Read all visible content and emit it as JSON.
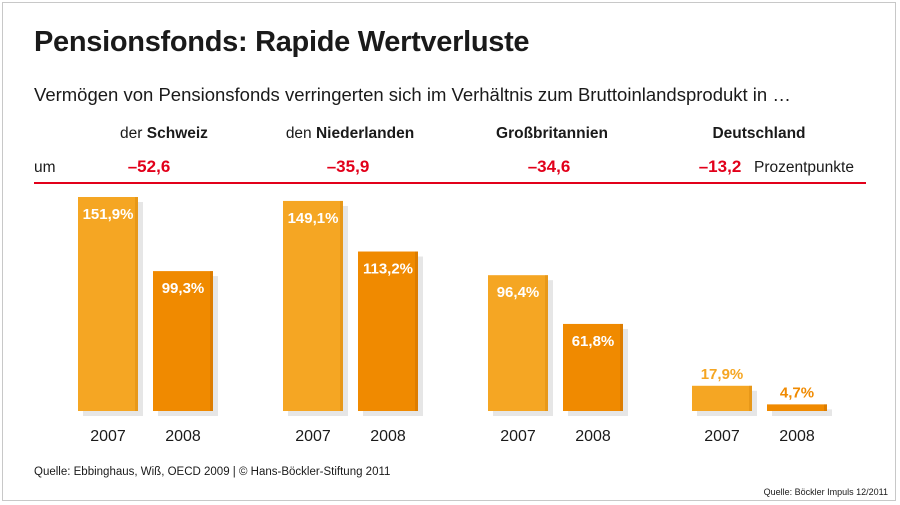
{
  "title": "Pensionsfonds: Rapide Wertverluste",
  "subtitle": "Vermögen von Pensionsfonds verringerten sich im Verhältnis zum Bruttoinlandsprodukt in …",
  "prefix_label": "um",
  "unit_label": "Prozentpunkte",
  "countries": [
    {
      "article": "der ",
      "name": "Schweiz",
      "diff": "–52,6"
    },
    {
      "article": "den ",
      "name": "Niederlanden",
      "diff": "–35,9"
    },
    {
      "article": "",
      "name": "Großbritannien",
      "diff": "–34,6"
    },
    {
      "article": "",
      "name": "Deutschland",
      "diff": "–13,2"
    }
  ],
  "source": "Quelle: Ebbinghaus, Wiß, OECD 2009 | © Hans-Böckler-Stiftung 2011",
  "source_right": "Quelle: Böckler Impuls 12/2011",
  "colors": {
    "bar_2007": "#f5a623",
    "bar_2008": "#f08a00",
    "accent_red": "#e2001a"
  },
  "chart_data": {
    "type": "bar",
    "categories": [
      "Schweiz",
      "Niederlanden",
      "Großbritannien",
      "Deutschland"
    ],
    "x": [
      "2007",
      "2008"
    ],
    "series": [
      {
        "values": [
          151.9,
          149.1,
          96.4,
          17.9
        ],
        "labels": [
          "151,9%",
          "149,1%",
          "96,4%",
          "17,9%"
        ]
      },
      {
        "values": [
          99.3,
          113.2,
          61.8,
          4.7
        ],
        "labels": [
          "99,3%",
          "113,2%",
          "61,8%",
          "4,7%"
        ]
      }
    ],
    "ylim": [
      0,
      151.9
    ],
    "grid": false,
    "legend": "none"
  }
}
